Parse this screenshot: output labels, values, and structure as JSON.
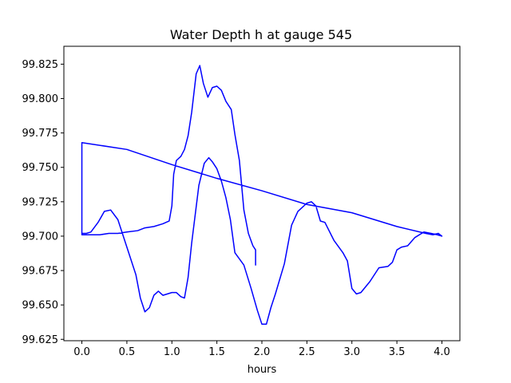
{
  "chart_data": {
    "type": "line",
    "title": "Water Depth h at gauge 545",
    "xlabel": "hours",
    "ylabel": "",
    "xlim": [
      -0.2,
      4.2
    ],
    "ylim": [
      99.624,
      99.838
    ],
    "x_ticks": [
      0.0,
      0.5,
      1.0,
      1.5,
      2.0,
      2.5,
      3.0,
      3.5,
      4.0
    ],
    "x_tick_labels": [
      "0.0",
      "0.5",
      "1.0",
      "1.5",
      "2.0",
      "2.5",
      "3.0",
      "3.5",
      "4.0"
    ],
    "y_ticks": [
      99.625,
      99.65,
      99.675,
      99.7,
      99.725,
      99.75,
      99.775,
      99.8,
      99.825
    ],
    "y_tick_labels": [
      "99.625",
      "99.650",
      "99.675",
      "99.700",
      "99.725",
      "99.750",
      "99.775",
      "99.800",
      "99.825"
    ],
    "grid": false,
    "legend": "none",
    "series": [
      {
        "color": "#0000ff",
        "points": [
          [
            1.93,
            99.679
          ],
          [
            1.93,
            99.69
          ],
          [
            1.9,
            99.693
          ],
          [
            1.85,
            99.702
          ],
          [
            1.8,
            99.719
          ],
          [
            1.75,
            99.755
          ],
          [
            1.7,
            99.774
          ],
          [
            1.66,
            99.792
          ],
          [
            1.6,
            99.798
          ],
          [
            1.55,
            99.806
          ],
          [
            1.5,
            99.809
          ],
          [
            1.45,
            99.808
          ],
          [
            1.4,
            99.801
          ],
          [
            1.35,
            99.811
          ],
          [
            1.31,
            99.824
          ],
          [
            1.27,
            99.818
          ],
          [
            1.22,
            99.79
          ],
          [
            1.18,
            99.773
          ],
          [
            1.14,
            99.763
          ],
          [
            1.1,
            99.758
          ],
          [
            1.05,
            99.755
          ],
          [
            1.02,
            99.745
          ],
          [
            1.0,
            99.722
          ],
          [
            0.97,
            99.711
          ],
          [
            0.9,
            99.709
          ],
          [
            0.8,
            99.707
          ],
          [
            0.7,
            99.706
          ],
          [
            0.62,
            99.704
          ],
          [
            0.5,
            99.703
          ],
          [
            0.4,
            99.702
          ],
          [
            0.3,
            99.702
          ],
          [
            0.2,
            99.701
          ],
          [
            0.1,
            99.701
          ],
          [
            0.0,
            99.701
          ],
          [
            0.0,
            99.702
          ],
          [
            0.0,
            99.767
          ],
          [
            0.0,
            99.768
          ],
          [
            0.5,
            99.763
          ],
          [
            1.0,
            99.752
          ],
          [
            1.5,
            99.742
          ],
          [
            2.0,
            99.733
          ],
          [
            2.5,
            99.723
          ],
          [
            3.0,
            99.717
          ],
          [
            3.5,
            99.707
          ],
          [
            3.82,
            99.702
          ],
          [
            3.9,
            99.701
          ],
          [
            3.96,
            99.702
          ],
          [
            4.0,
            99.7
          ],
          [
            3.95,
            99.701
          ],
          [
            3.88,
            99.702
          ],
          [
            3.8,
            99.703
          ],
          [
            3.7,
            99.699
          ],
          [
            3.62,
            99.693
          ],
          [
            3.55,
            99.692
          ],
          [
            3.5,
            99.69
          ],
          [
            3.45,
            99.681
          ],
          [
            3.4,
            99.678
          ],
          [
            3.3,
            99.677
          ],
          [
            3.2,
            99.667
          ],
          [
            3.1,
            99.659
          ],
          [
            3.05,
            99.658
          ],
          [
            3.0,
            99.662
          ],
          [
            2.95,
            99.682
          ],
          [
            2.9,
            99.688
          ],
          [
            2.8,
            99.697
          ],
          [
            2.7,
            99.71
          ],
          [
            2.65,
            99.711
          ],
          [
            2.6,
            99.722
          ],
          [
            2.55,
            99.725
          ],
          [
            2.5,
            99.724
          ],
          [
            2.4,
            99.718
          ],
          [
            2.33,
            99.708
          ],
          [
            2.25,
            99.68
          ],
          [
            2.15,
            99.658
          ],
          [
            2.1,
            99.648
          ],
          [
            2.05,
            99.636
          ],
          [
            2.0,
            99.636
          ],
          [
            1.95,
            99.646
          ],
          [
            1.88,
            99.662
          ],
          [
            1.8,
            99.679
          ],
          [
            1.7,
            99.688
          ],
          [
            1.65,
            99.712
          ],
          [
            1.6,
            99.728
          ],
          [
            1.55,
            99.74
          ],
          [
            1.5,
            99.749
          ],
          [
            1.45,
            99.754
          ],
          [
            1.41,
            99.757
          ],
          [
            1.36,
            99.753
          ],
          [
            1.3,
            99.737
          ],
          [
            1.22,
            99.695
          ],
          [
            1.18,
            99.67
          ],
          [
            1.14,
            99.655
          ],
          [
            1.1,
            99.656
          ],
          [
            1.05,
            99.659
          ],
          [
            1.0,
            99.659
          ],
          [
            0.95,
            99.658
          ],
          [
            0.9,
            99.657
          ],
          [
            0.85,
            99.66
          ],
          [
            0.8,
            99.657
          ],
          [
            0.75,
            99.648
          ],
          [
            0.7,
            99.645
          ],
          [
            0.65,
            99.655
          ],
          [
            0.6,
            99.672
          ],
          [
            0.5,
            99.692
          ],
          [
            0.4,
            99.712
          ],
          [
            0.32,
            99.719
          ],
          [
            0.25,
            99.718
          ],
          [
            0.18,
            99.71
          ],
          [
            0.1,
            99.703
          ],
          [
            0.05,
            99.702
          ],
          [
            0.0,
            99.702
          ]
        ]
      }
    ]
  }
}
